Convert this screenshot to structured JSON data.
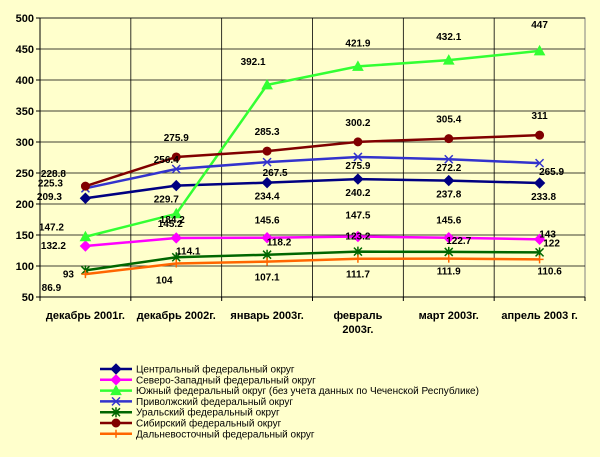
{
  "chart_data": {
    "type": "line",
    "categories": [
      "декабрь 2001г.",
      "декабрь 2002г.",
      "январь 2003г.",
      "февраль 2003г.",
      "март 2003г.",
      "апрель 2003 г."
    ],
    "ylim": [
      50,
      500
    ],
    "yticks": [
      50,
      100,
      150,
      200,
      250,
      300,
      350,
      400,
      450,
      500
    ],
    "grid": true,
    "legend_position": "bottom",
    "series": [
      {
        "name": "Центральный федеральный округ",
        "color": "#000080",
        "marker": "diamond",
        "values": [
          209.3,
          229.7,
          234.4,
          240.2,
          237.8,
          233.8
        ],
        "labels": [
          "209.3",
          "229.7",
          "234.4",
          "240.2",
          "237.8",
          "233.8"
        ]
      },
      {
        "name": "Северо-Западный федеральный округ",
        "color": "#FF00FF",
        "marker": "diamond",
        "values": [
          132.2,
          145.2,
          145.6,
          147.5,
          145.6,
          143
        ],
        "labels": [
          "132.2",
          "145.2",
          "145.6",
          "147.5",
          "145.6",
          "143"
        ]
      },
      {
        "name": "Южный федеральный округ (без учета данных по Чеченской Республике)",
        "color": "#33FF33",
        "marker": "triangle",
        "values": [
          147.2,
          184.2,
          392.1,
          421.9,
          432.1,
          447
        ],
        "labels": [
          "147.2",
          "184.2",
          "392.1",
          "421.9",
          "432.1",
          "447"
        ]
      },
      {
        "name": "Приволжский федеральный округ",
        "color": "#3333CC",
        "marker": "x",
        "values": [
          225.3,
          256.4,
          267.5,
          275.9,
          272.2,
          265.9
        ],
        "labels": [
          "225.3",
          "256.4",
          "267.5",
          "275.9",
          "272.2",
          "265.9"
        ]
      },
      {
        "name": "Уральский федеральный округ",
        "color": "#006600",
        "marker": "star",
        "values": [
          93,
          114.1,
          118.2,
          123.2,
          122.7,
          122
        ],
        "labels": [
          "93",
          "114.1",
          "118.2",
          "123.2",
          "122.7",
          "122"
        ]
      },
      {
        "name": "Сибирский федеральный округ",
        "color": "#800000",
        "marker": "circle",
        "values": [
          228.8,
          275.9,
          285.3,
          300.2,
          305.4,
          311
        ],
        "labels": [
          "228.8",
          "275.9",
          "285.3",
          "300.2",
          "305.4",
          "311"
        ]
      },
      {
        "name": "Дальневосточный федеральный округ",
        "color": "#FF6600",
        "marker": "plus",
        "values": [
          86.9,
          104,
          107.1,
          111.7,
          111.9,
          110.6
        ],
        "labels": [
          "86.9",
          "104",
          "107.1",
          "111.7",
          "111.9",
          "110.6"
        ]
      }
    ]
  }
}
